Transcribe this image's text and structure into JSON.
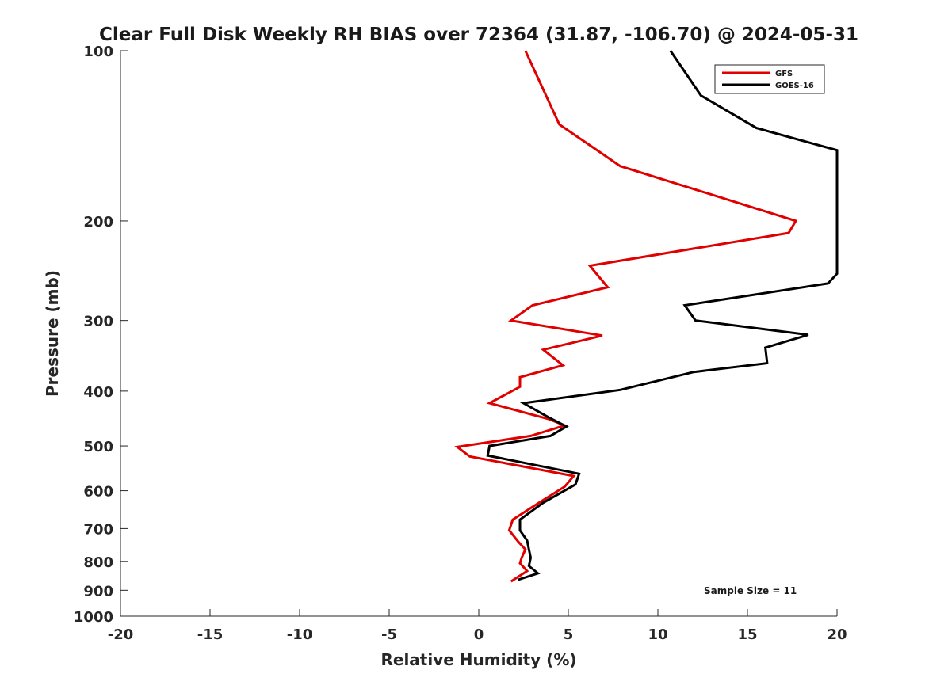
{
  "chart_data": {
    "type": "line",
    "title": "Clear Full Disk Weekly RH BIAS over 72364 (31.87, -106.70) @ 2024-05-31",
    "xlabel": "Relative Humidity (%)",
    "ylabel": "Pressure (mb)",
    "xlim": [
      -20,
      20
    ],
    "ylim": [
      100,
      1000
    ],
    "y_scale": "log",
    "y_reversed": true,
    "grid": false,
    "legend_position": "top-right",
    "x_ticks": [
      -20,
      -15,
      -10,
      -5,
      0,
      5,
      10,
      15,
      20
    ],
    "y_ticks": [
      100,
      200,
      300,
      400,
      500,
      600,
      700,
      800,
      900,
      1000
    ],
    "series": [
      {
        "name": "GFS",
        "color": "#e00000",
        "points": [
          [
            2.6,
            100
          ],
          [
            4.5,
            135
          ],
          [
            7.9,
            160
          ],
          [
            17.7,
            200
          ],
          [
            17.3,
            210
          ],
          [
            6.2,
            240
          ],
          [
            7.2,
            262
          ],
          [
            3.0,
            282
          ],
          [
            1.8,
            300
          ],
          [
            6.9,
            319
          ],
          [
            3.6,
            338
          ],
          [
            4.7,
            360
          ],
          [
            2.3,
            378
          ],
          [
            2.3,
            393
          ],
          [
            0.6,
            420
          ],
          [
            3.9,
            448
          ],
          [
            4.8,
            460
          ],
          [
            2.9,
            480
          ],
          [
            -1.2,
            502
          ],
          [
            -0.5,
            522
          ],
          [
            5.3,
            565
          ],
          [
            4.8,
            590
          ],
          [
            3.3,
            632
          ],
          [
            1.9,
            675
          ],
          [
            1.7,
            705
          ],
          [
            2.2,
            738
          ],
          [
            2.6,
            762
          ],
          [
            2.4,
            788
          ],
          [
            2.3,
            806
          ],
          [
            2.7,
            832
          ],
          [
            1.8,
            868
          ]
        ]
      },
      {
        "name": "GOES-16",
        "color": "#000000",
        "points": [
          [
            10.7,
            100
          ],
          [
            12.4,
            120
          ],
          [
            15.5,
            137
          ],
          [
            20.0,
            150
          ],
          [
            20.0,
            248
          ],
          [
            19.5,
            258
          ],
          [
            11.5,
            282
          ],
          [
            12.1,
            300
          ],
          [
            18.4,
            318
          ],
          [
            16.0,
            335
          ],
          [
            16.1,
            357
          ],
          [
            12.0,
            370
          ],
          [
            7.9,
            398
          ],
          [
            2.5,
            420
          ],
          [
            3.9,
            445
          ],
          [
            4.9,
            462
          ],
          [
            4.0,
            480
          ],
          [
            0.6,
            500
          ],
          [
            0.5,
            520
          ],
          [
            5.6,
            560
          ],
          [
            5.4,
            585
          ],
          [
            3.6,
            630
          ],
          [
            2.3,
            675
          ],
          [
            2.3,
            705
          ],
          [
            2.7,
            735
          ],
          [
            2.8,
            762
          ],
          [
            2.9,
            788
          ],
          [
            2.8,
            815
          ],
          [
            3.3,
            840
          ],
          [
            2.2,
            862
          ]
        ]
      }
    ],
    "annotations": [
      "Sample Size = 11"
    ]
  }
}
